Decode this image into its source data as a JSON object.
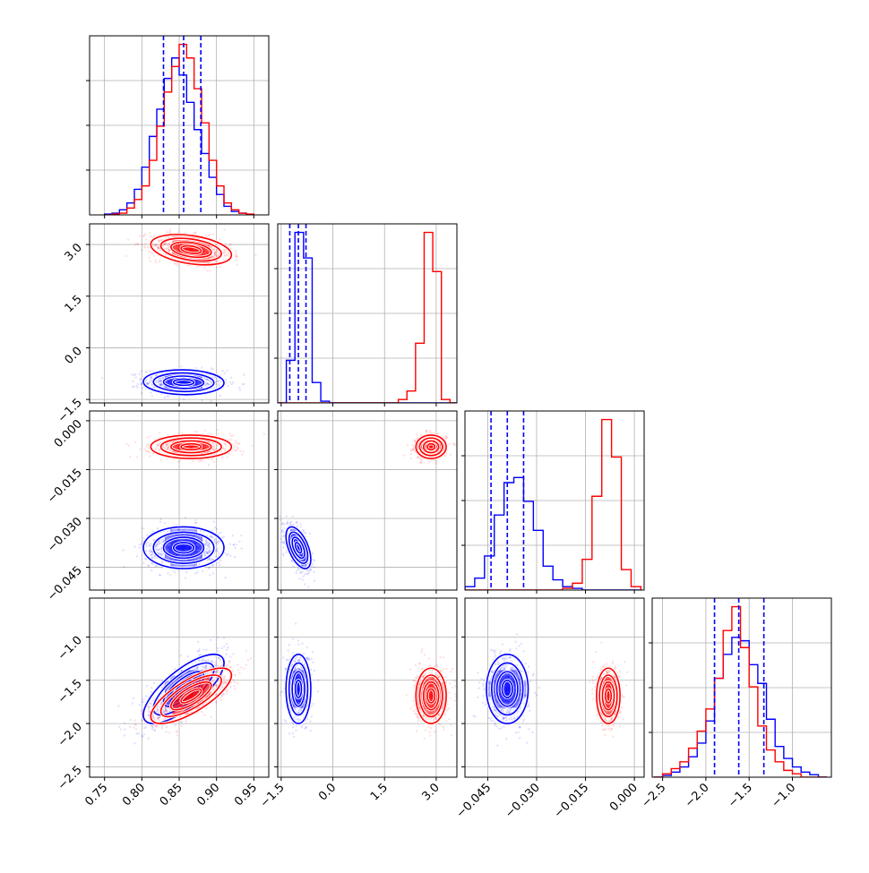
{
  "chart_data": {
    "type": "corner",
    "grid": true,
    "colors": {
      "blue": "#0000ff",
      "red": "#ff0000",
      "grid": "#b0b0b0"
    },
    "series": [
      {
        "color": "blue"
      },
      {
        "color": "red"
      }
    ],
    "parameters": [
      {
        "range": [
          0.73,
          0.97
        ],
        "ticks": [
          0.75,
          0.8,
          0.85,
          0.9,
          0.95
        ],
        "tick_labels": [
          "0.75",
          "0.80",
          "0.85",
          "0.90",
          "0.95"
        ]
      },
      {
        "range": [
          -1.6,
          3.6
        ],
        "ticks": [
          -1.5,
          0.0,
          1.5,
          3.0
        ],
        "tick_labels": [
          "−1.5",
          "0.0",
          "1.5",
          "3.0"
        ]
      },
      {
        "range": [
          -0.052,
          0.003
        ],
        "ticks": [
          -0.045,
          -0.03,
          -0.015,
          0.0
        ],
        "tick_labels": [
          "−0.045",
          "−0.030",
          "−0.015",
          "0.000"
        ]
      },
      {
        "range": [
          -2.62,
          -0.55
        ],
        "ticks": [
          -2.5,
          -2.0,
          -1.5,
          -1.0
        ],
        "tick_labels": [
          "−2.5",
          "−2.0",
          "−1.5",
          "−1.0"
        ]
      }
    ],
    "histograms": [
      {
        "edges": [
          0.75,
          0.76,
          0.77,
          0.78,
          0.79,
          0.8,
          0.81,
          0.82,
          0.83,
          0.84,
          0.85,
          0.86,
          0.87,
          0.88,
          0.89,
          0.9,
          0.91,
          0.92,
          0.93,
          0.94,
          0.95
        ],
        "blue": [
          0.005,
          0.01,
          0.03,
          0.07,
          0.15,
          0.28,
          0.46,
          0.62,
          0.8,
          0.92,
          0.82,
          0.66,
          0.5,
          0.36,
          0.22,
          0.12,
          0.05,
          0.02,
          0.01,
          0.0
        ],
        "red": [
          0.0,
          0.005,
          0.01,
          0.04,
          0.09,
          0.17,
          0.32,
          0.52,
          0.72,
          0.87,
          1.0,
          0.92,
          0.74,
          0.54,
          0.32,
          0.17,
          0.07,
          0.03,
          0.01,
          0.005
        ],
        "quantiles": [
          0.829,
          0.856,
          0.879
        ]
      },
      {
        "edges": [
          -1.6,
          -1.35,
          -1.1,
          -0.85,
          -0.6,
          -0.35,
          -0.1,
          0.15,
          0.4,
          0.65,
          0.9,
          1.15,
          1.4,
          1.65,
          1.9,
          2.15,
          2.4,
          2.65,
          2.9,
          3.15,
          3.4,
          3.6
        ],
        "blue": [
          0.0,
          0.25,
          1.0,
          0.85,
          0.12,
          0.01,
          0.0,
          0.0,
          0.0,
          0.0,
          0.0,
          0.0,
          0.0,
          0.0,
          0.0,
          0.0,
          0.0,
          0.0,
          0.0,
          0.0,
          0.0
        ],
        "red": [
          0.0,
          0.0,
          0.0,
          0.0,
          0.0,
          0.0,
          0.0,
          0.0,
          0.0,
          0.0,
          0.0,
          0.0,
          0.0,
          0.0,
          0.02,
          0.07,
          0.35,
          1.0,
          0.77,
          0.02,
          0.0
        ],
        "quantiles": [
          -1.25,
          -1.0,
          -0.78
        ]
      },
      {
        "edges": [
          -0.052,
          -0.049,
          -0.046,
          -0.043,
          -0.04,
          -0.037,
          -0.034,
          -0.031,
          -0.028,
          -0.025,
          -0.022,
          -0.019,
          -0.016,
          -0.013,
          -0.01,
          -0.007,
          -0.004,
          -0.001,
          0.002
        ],
        "blue": [
          0.02,
          0.07,
          0.2,
          0.44,
          0.63,
          0.66,
          0.52,
          0.35,
          0.14,
          0.06,
          0.02,
          0.01,
          0.0,
          0.0,
          0.0,
          0.0,
          0.0,
          0.0
        ],
        "red": [
          0.0,
          0.0,
          0.0,
          0.0,
          0.0,
          0.0,
          0.0,
          0.0,
          0.0,
          0.0,
          0.01,
          0.04,
          0.18,
          0.55,
          1.0,
          0.78,
          0.12,
          0.02
        ],
        "quantiles": [
          -0.044,
          -0.039,
          -0.034
        ]
      },
      {
        "edges": [
          -2.6,
          -2.5,
          -2.4,
          -2.3,
          -2.2,
          -2.1,
          -2.0,
          -1.9,
          -1.8,
          -1.7,
          -1.6,
          -1.5,
          -1.4,
          -1.3,
          -1.2,
          -1.1,
          -1.0,
          -0.9,
          -0.8,
          -0.7,
          -0.6
        ],
        "blue": [
          0.0,
          0.01,
          0.03,
          0.06,
          0.12,
          0.2,
          0.33,
          0.58,
          0.72,
          0.82,
          0.8,
          0.66,
          0.55,
          0.34,
          0.18,
          0.11,
          0.06,
          0.03,
          0.015,
          0.0
        ],
        "red": [
          0.0,
          0.02,
          0.05,
          0.09,
          0.17,
          0.27,
          0.4,
          0.58,
          0.86,
          1.0,
          0.76,
          0.53,
          0.3,
          0.16,
          0.09,
          0.04,
          0.02,
          0.0,
          0.0,
          0.0
        ],
        "quantiles": [
          -1.9,
          -1.62,
          -1.33
        ]
      }
    ],
    "distributions": {
      "blue": {
        "mean": [
          0.856,
          -1.0,
          -0.039,
          -1.6
        ],
        "sd": [
          0.027,
          0.18,
          0.0032,
          0.2
        ]
      },
      "red": {
        "mean": [
          0.866,
          2.85,
          -0.008,
          -1.68
        ],
        "sd": [
          0.027,
          0.22,
          0.0018,
          0.16
        ]
      }
    },
    "correlations": {
      "blue": {
        "1-0": -0.05,
        "2-0": 0.0,
        "2-1": -0.55,
        "3-0": 0.75,
        "3-1": 0.0,
        "3-2": 0.0
      },
      "red": {
        "1-0": -0.35,
        "2-0": 0.0,
        "2-1": 0.0,
        "3-0": 0.75,
        "3-1": 0.0,
        "3-2": 0.0
      }
    }
  }
}
